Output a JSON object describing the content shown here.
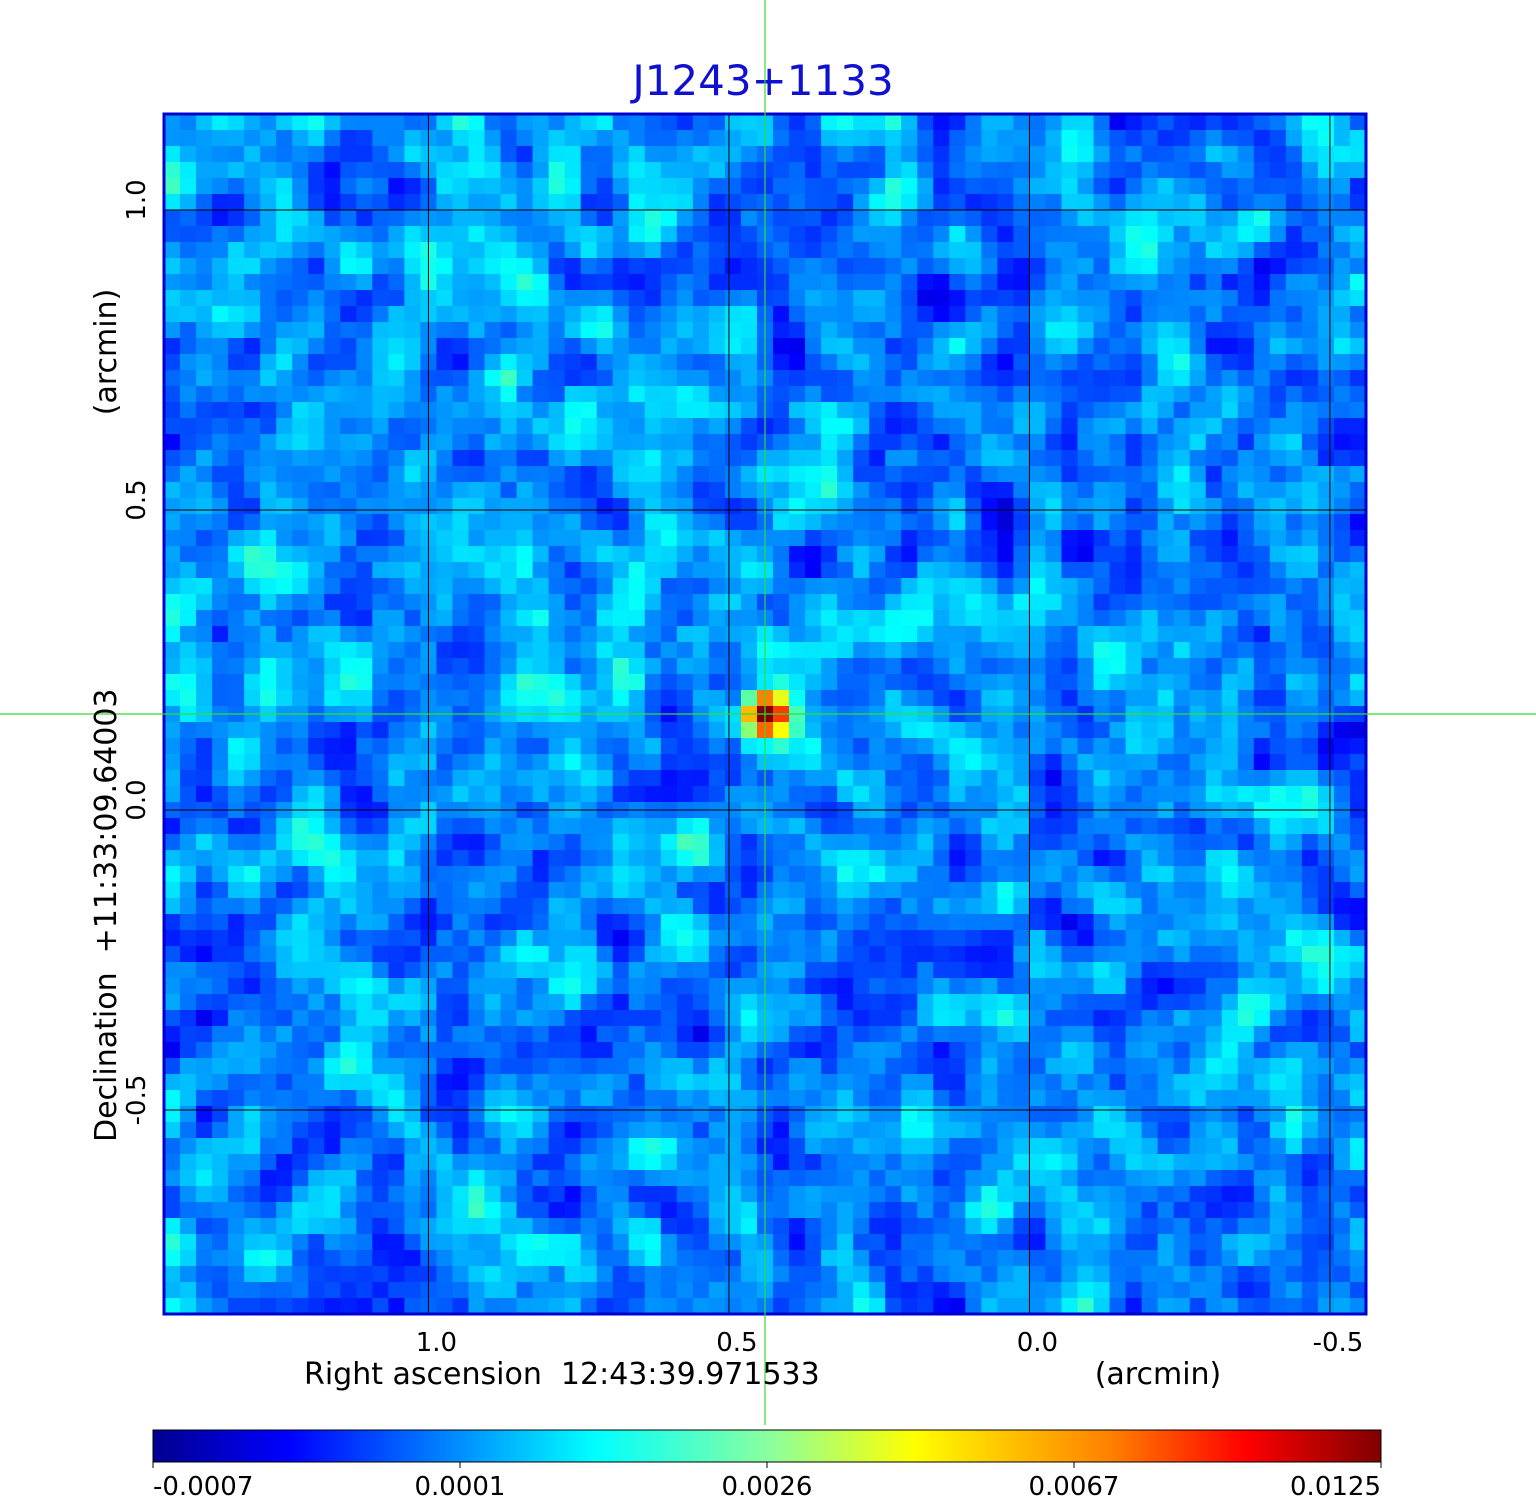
{
  "chart_data": {
    "type": "heatmap",
    "title": "J1243+1133",
    "xlabel": "Right ascension  12:43:39.971533",
    "xunit": "(arcmin)",
    "ylabel": "Declination  +11:33:09.64003",
    "yunit": "(arcmin)",
    "x_ticks": [
      {
        "value": 1.0,
        "label": "1.0"
      },
      {
        "value": 0.5,
        "label": "0.5"
      },
      {
        "value": 0.0,
        "label": "0.0"
      },
      {
        "value": -0.5,
        "label": "-0.5"
      }
    ],
    "y_ticks": [
      {
        "value": 1.0,
        "label": "1.0"
      },
      {
        "value": 0.5,
        "label": "0.5"
      },
      {
        "value": 0.0,
        "label": "0.0"
      },
      {
        "value": -0.5,
        "label": "-0.5"
      }
    ],
    "xlim": [
      1.44,
      -0.56
    ],
    "ylim": [
      -0.84,
      1.16
    ],
    "grid": true,
    "crosshair": {
      "x": 0.44,
      "y": 0.16
    },
    "source": {
      "x": 0.44,
      "y": 0.16,
      "peak": 0.0125
    },
    "colorbar": {
      "labels": [
        "-0.0007",
        "0.0001",
        "0.0026",
        "0.0067",
        "0.0125"
      ],
      "colormap": "jet"
    },
    "background_level": 0.0001
  },
  "colors": {
    "title": "#1010d0",
    "frame": "#0000cc",
    "crosshair": "#33dd33",
    "grid": "#000000"
  }
}
